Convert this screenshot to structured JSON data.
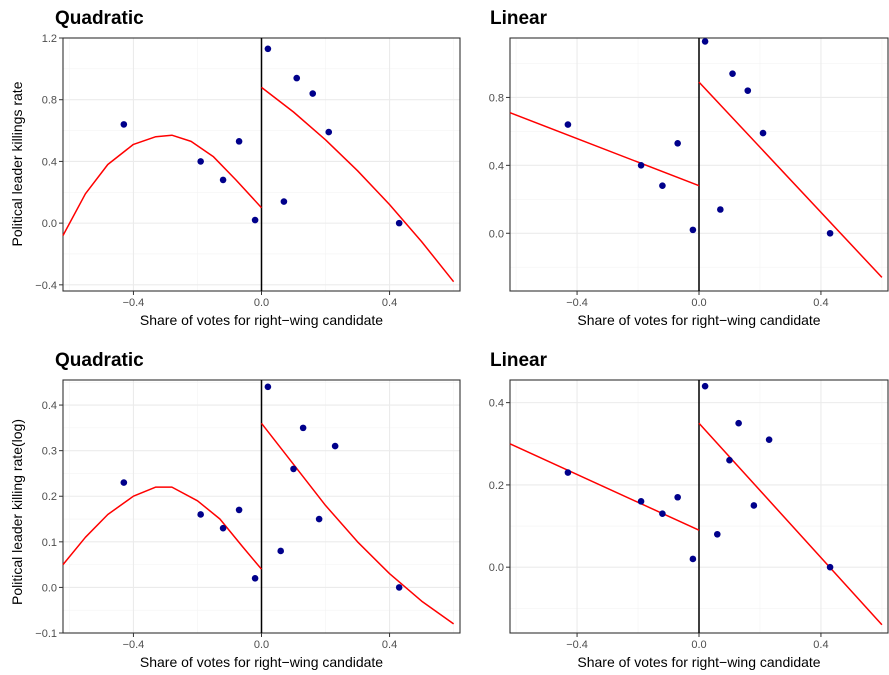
{
  "figure": {
    "ylabel_top": "Political leader killings rate",
    "ylabel_bottom": "Political leader killing rate(log)"
  },
  "chart_data": [
    {
      "type": "scatter",
      "title": "Quadratic",
      "xlabel": "Share of votes for right−wing candidate",
      "ylabel": "Political leader killings rate",
      "xlim": [
        -0.62,
        0.62
      ],
      "ylim": [
        -0.44,
        1.2
      ],
      "xticks": [
        -0.4,
        0.0,
        0.4
      ],
      "xtick_labels": [
        "−0.4",
        "0.0",
        "0.4"
      ],
      "yticks": [
        -0.4,
        0.0,
        0.4,
        0.8,
        1.2
      ],
      "ytick_labels": [
        "−0.4",
        "0.0",
        "0.4",
        "0.8",
        "1.2"
      ],
      "grid": true,
      "cutoff": 0.0,
      "point_color": "#00008b",
      "fit_color": "#ff0000",
      "points": [
        {
          "x": -0.43,
          "y": 0.64
        },
        {
          "x": -0.19,
          "y": 0.4
        },
        {
          "x": -0.12,
          "y": 0.28
        },
        {
          "x": -0.07,
          "y": 0.53
        },
        {
          "x": -0.02,
          "y": 0.02
        },
        {
          "x": 0.02,
          "y": 1.13
        },
        {
          "x": 0.07,
          "y": 0.14
        },
        {
          "x": 0.11,
          "y": 0.94
        },
        {
          "x": 0.16,
          "y": 0.84
        },
        {
          "x": 0.21,
          "y": 0.59
        },
        {
          "x": 0.43,
          "y": 0.0
        }
      ],
      "fit_left": [
        {
          "x": -0.62,
          "y": -0.08
        },
        {
          "x": -0.55,
          "y": 0.19
        },
        {
          "x": -0.48,
          "y": 0.38
        },
        {
          "x": -0.4,
          "y": 0.51
        },
        {
          "x": -0.33,
          "y": 0.56
        },
        {
          "x": -0.28,
          "y": 0.57
        },
        {
          "x": -0.22,
          "y": 0.53
        },
        {
          "x": -0.15,
          "y": 0.43
        },
        {
          "x": -0.08,
          "y": 0.28
        },
        {
          "x": 0.0,
          "y": 0.1
        }
      ],
      "fit_right": [
        {
          "x": 0.0,
          "y": 0.88
        },
        {
          "x": 0.1,
          "y": 0.72
        },
        {
          "x": 0.2,
          "y": 0.54
        },
        {
          "x": 0.3,
          "y": 0.34
        },
        {
          "x": 0.4,
          "y": 0.12
        },
        {
          "x": 0.5,
          "y": -0.12
        },
        {
          "x": 0.6,
          "y": -0.38
        }
      ]
    },
    {
      "type": "scatter",
      "title": "Linear",
      "xlabel": "Share of votes for right−wing candidate",
      "ylabel": "",
      "xlim": [
        -0.62,
        0.62
      ],
      "ylim": [
        -0.34,
        1.15
      ],
      "xticks": [
        -0.4,
        0.0,
        0.4
      ],
      "xtick_labels": [
        "−0.4",
        "0.0",
        "0.4"
      ],
      "yticks": [
        0.0,
        0.4,
        0.8
      ],
      "ytick_labels": [
        "0.0",
        "0.4",
        "0.8"
      ],
      "grid": true,
      "cutoff": 0.0,
      "point_color": "#00008b",
      "fit_color": "#ff0000",
      "points": [
        {
          "x": -0.43,
          "y": 0.64
        },
        {
          "x": -0.19,
          "y": 0.4
        },
        {
          "x": -0.12,
          "y": 0.28
        },
        {
          "x": -0.07,
          "y": 0.53
        },
        {
          "x": -0.02,
          "y": 0.02
        },
        {
          "x": 0.02,
          "y": 1.13
        },
        {
          "x": 0.07,
          "y": 0.14
        },
        {
          "x": 0.11,
          "y": 0.94
        },
        {
          "x": 0.16,
          "y": 0.84
        },
        {
          "x": 0.21,
          "y": 0.59
        },
        {
          "x": 0.43,
          "y": 0.0
        }
      ],
      "fit_left": [
        {
          "x": -0.62,
          "y": 0.71
        },
        {
          "x": 0.0,
          "y": 0.28
        }
      ],
      "fit_right": [
        {
          "x": 0.0,
          "y": 0.89
        },
        {
          "x": 0.6,
          "y": -0.26
        }
      ]
    },
    {
      "type": "scatter",
      "title": "Quadratic",
      "xlabel": "Share of votes for right−wing candidate",
      "ylabel": "Political leader killing rate(log)",
      "xlim": [
        -0.62,
        0.62
      ],
      "ylim": [
        -0.1,
        0.455
      ],
      "xticks": [
        -0.4,
        0.0,
        0.4
      ],
      "xtick_labels": [
        "−0.4",
        "0.0",
        "0.4"
      ],
      "yticks": [
        -0.1,
        0.0,
        0.1,
        0.2,
        0.3,
        0.4
      ],
      "ytick_labels": [
        "−0.1",
        "0.0",
        "0.1",
        "0.2",
        "0.3",
        "0.4"
      ],
      "grid": true,
      "cutoff": 0.0,
      "point_color": "#00008b",
      "fit_color": "#ff0000",
      "points": [
        {
          "x": -0.43,
          "y": 0.23
        },
        {
          "x": -0.19,
          "y": 0.16
        },
        {
          "x": -0.12,
          "y": 0.13
        },
        {
          "x": -0.07,
          "y": 0.17
        },
        {
          "x": -0.02,
          "y": 0.02
        },
        {
          "x": 0.02,
          "y": 0.44
        },
        {
          "x": 0.06,
          "y": 0.08
        },
        {
          "x": 0.1,
          "y": 0.26
        },
        {
          "x": 0.13,
          "y": 0.35
        },
        {
          "x": 0.18,
          "y": 0.15
        },
        {
          "x": 0.23,
          "y": 0.31
        },
        {
          "x": 0.43,
          "y": 0.0
        }
      ],
      "fit_left": [
        {
          "x": -0.62,
          "y": 0.05
        },
        {
          "x": -0.55,
          "y": 0.11
        },
        {
          "x": -0.48,
          "y": 0.16
        },
        {
          "x": -0.4,
          "y": 0.2
        },
        {
          "x": -0.33,
          "y": 0.22
        },
        {
          "x": -0.28,
          "y": 0.22
        },
        {
          "x": -0.2,
          "y": 0.19
        },
        {
          "x": -0.13,
          "y": 0.15
        },
        {
          "x": -0.06,
          "y": 0.09
        },
        {
          "x": 0.0,
          "y": 0.04
        }
      ],
      "fit_right": [
        {
          "x": 0.0,
          "y": 0.36
        },
        {
          "x": 0.1,
          "y": 0.27
        },
        {
          "x": 0.2,
          "y": 0.18
        },
        {
          "x": 0.3,
          "y": 0.1
        },
        {
          "x": 0.4,
          "y": 0.03
        },
        {
          "x": 0.5,
          "y": -0.03
        },
        {
          "x": 0.6,
          "y": -0.08
        }
      ]
    },
    {
      "type": "scatter",
      "title": "Linear",
      "xlabel": "Share of votes for right−wing candidate",
      "ylabel": "",
      "xlim": [
        -0.62,
        0.62
      ],
      "ylim": [
        -0.16,
        0.455
      ],
      "xticks": [
        -0.4,
        0.0,
        0.4
      ],
      "xtick_labels": [
        "−0.4",
        "0.0",
        "0.4"
      ],
      "yticks": [
        0.0,
        0.2,
        0.4
      ],
      "ytick_labels": [
        "0.0",
        "0.2",
        "0.4"
      ],
      "grid": true,
      "cutoff": 0.0,
      "point_color": "#00008b",
      "fit_color": "#ff0000",
      "points": [
        {
          "x": -0.43,
          "y": 0.23
        },
        {
          "x": -0.19,
          "y": 0.16
        },
        {
          "x": -0.12,
          "y": 0.13
        },
        {
          "x": -0.07,
          "y": 0.17
        },
        {
          "x": -0.02,
          "y": 0.02
        },
        {
          "x": 0.02,
          "y": 0.44
        },
        {
          "x": 0.06,
          "y": 0.08
        },
        {
          "x": 0.1,
          "y": 0.26
        },
        {
          "x": 0.13,
          "y": 0.35
        },
        {
          "x": 0.18,
          "y": 0.15
        },
        {
          "x": 0.23,
          "y": 0.31
        },
        {
          "x": 0.43,
          "y": 0.0
        }
      ],
      "fit_left": [
        {
          "x": -0.62,
          "y": 0.3
        },
        {
          "x": 0.0,
          "y": 0.09
        }
      ],
      "fit_right": [
        {
          "x": 0.0,
          "y": 0.35
        },
        {
          "x": 0.6,
          "y": -0.14
        }
      ]
    }
  ]
}
